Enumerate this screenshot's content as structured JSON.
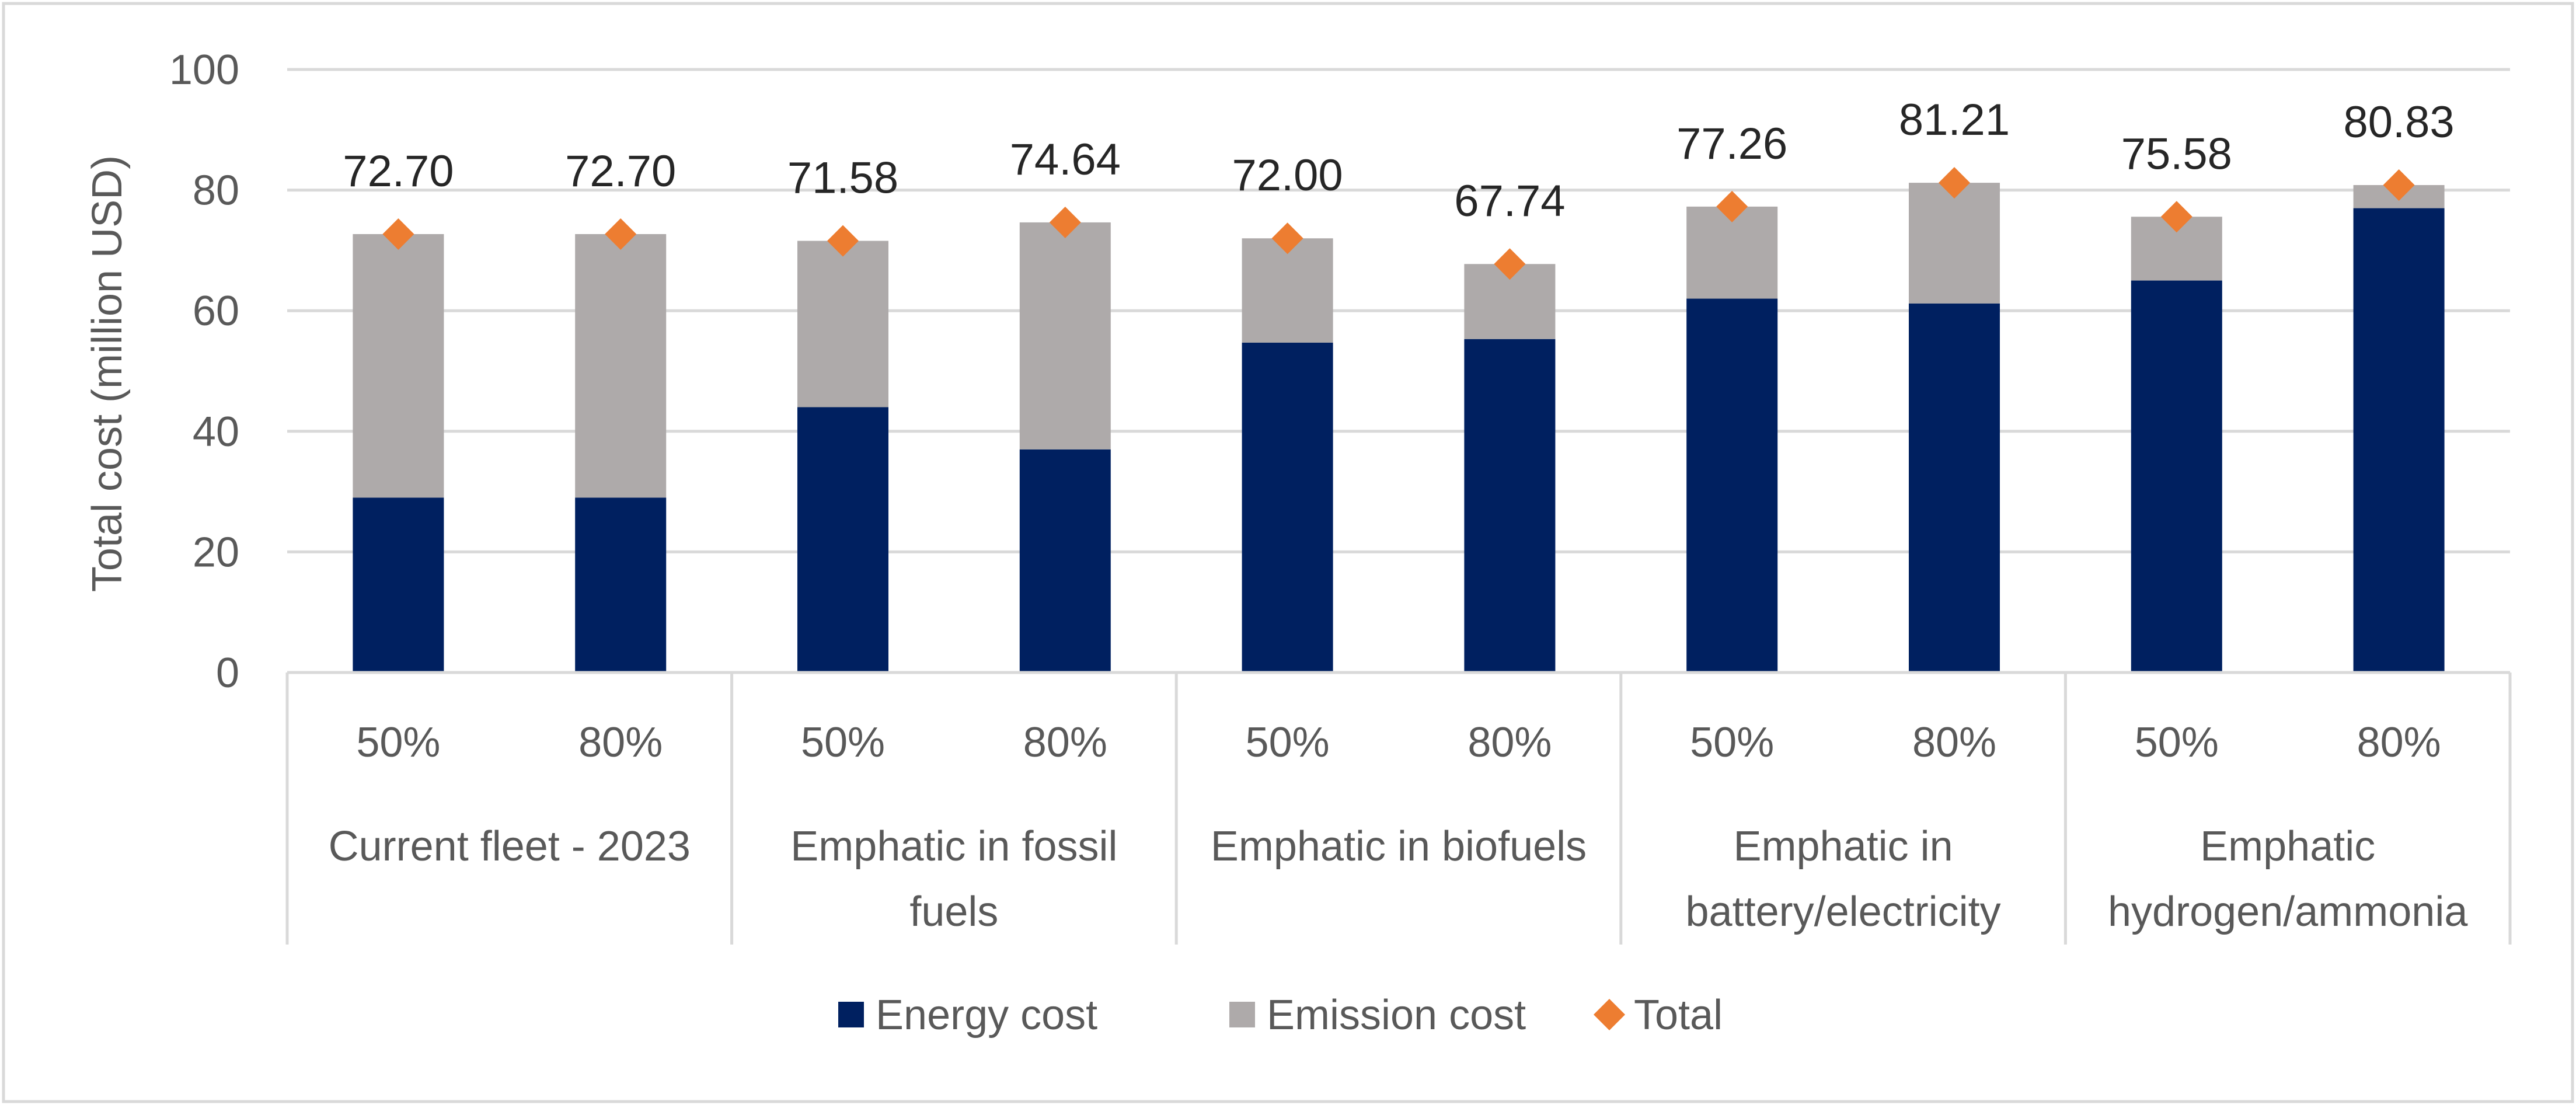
{
  "chart_data": {
    "type": "bar",
    "stacked": true,
    "title": "",
    "xlabel": "",
    "ylabel": "Total cost (million USD)",
    "ylim": [
      0,
      100
    ],
    "yticks": [
      0,
      20,
      40,
      60,
      80,
      100
    ],
    "grid": true,
    "legend_position": "bottom",
    "groups": [
      {
        "label": "Current fleet - 2023",
        "subcategories": [
          "50%",
          "80%"
        ]
      },
      {
        "label": "Emphatic in fossil fuels",
        "subcategories": [
          "50%",
          "80%"
        ]
      },
      {
        "label": "Emphatic in biofuels",
        "subcategories": [
          "50%",
          "80%"
        ]
      },
      {
        "label": "Emphatic in battery/electricity",
        "subcategories": [
          "50%",
          "80%"
        ]
      },
      {
        "label": "Emphatic hydrogen/ammonia",
        "subcategories": [
          "50%",
          "80%"
        ]
      }
    ],
    "series": [
      {
        "name": "Energy cost",
        "kind": "bar",
        "color": "#002060",
        "values": [
          29.0,
          29.0,
          44.0,
          37.0,
          54.7,
          55.3,
          62.0,
          61.2,
          65.0,
          77.0
        ]
      },
      {
        "name": "Emission cost",
        "kind": "bar",
        "color": "#AEAAAA",
        "values": [
          43.7,
          43.7,
          27.58,
          37.64,
          17.3,
          12.44,
          15.26,
          20.01,
          10.58,
          3.83
        ]
      },
      {
        "name": "Total",
        "kind": "marker",
        "marker": "diamond",
        "color": "#ED7D31",
        "values": [
          72.7,
          72.7,
          71.58,
          74.64,
          72.0,
          67.74,
          77.26,
          81.21,
          75.58,
          80.83
        ],
        "labels": [
          "72.70",
          "72.70",
          "71.58",
          "74.64",
          "72.00",
          "67.74",
          "77.26",
          "81.21",
          "75.58",
          "80.83"
        ]
      }
    ],
    "group_label_lines": [
      [
        "Current fleet - 2023"
      ],
      [
        "Emphatic in fossil",
        "fuels"
      ],
      [
        "Emphatic in biofuels"
      ],
      [
        "Emphatic in",
        "battery/electricity"
      ],
      [
        "Emphatic",
        "hydrogen/ammonia"
      ]
    ]
  },
  "colors": {
    "gridline": "#D9D9D9",
    "axis": "#D9D9D9",
    "text": "#595959",
    "label": "#262626",
    "border": "#D9D9D9"
  }
}
